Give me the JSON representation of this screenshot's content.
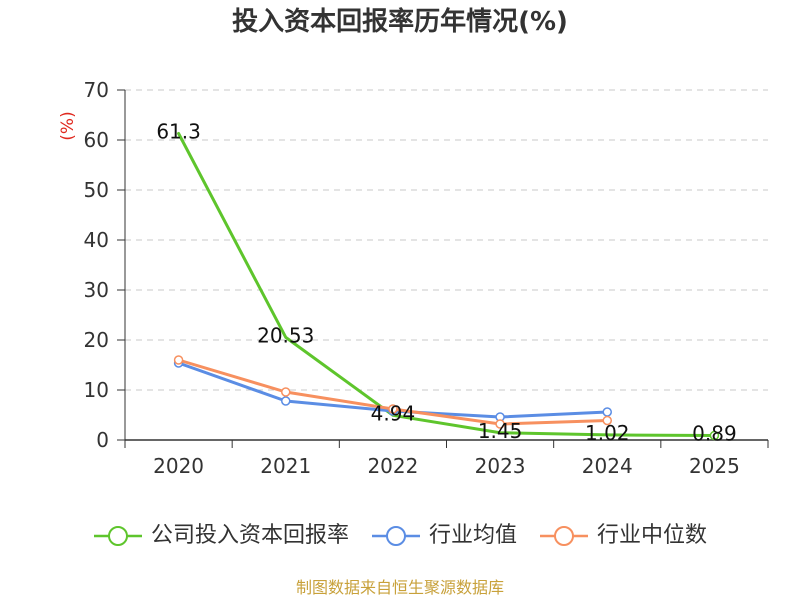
{
  "chart_data": {
    "type": "line",
    "title": "投入资本回报率历年情况(%)",
    "xlabel": "",
    "ylabel": "(%)",
    "categories": [
      "2020",
      "2021",
      "2022",
      "2023",
      "2024",
      "2025"
    ],
    "ylim": [
      0,
      70
    ],
    "yticks": [
      0,
      10,
      20,
      30,
      40,
      50,
      60,
      70
    ],
    "grid": true,
    "legend": "bottom",
    "series": [
      {
        "name": "公司投入资本回报率",
        "color": "#5ec52c",
        "values": [
          61.3,
          20.53,
          4.94,
          1.45,
          1.02,
          0.89
        ],
        "show_labels": true
      },
      {
        "name": "行业均值",
        "color": "#5b8de4",
        "values": [
          15.4,
          7.8,
          5.8,
          4.6,
          5.6,
          null
        ],
        "show_labels": false
      },
      {
        "name": "行业中位数",
        "color": "#f7905f",
        "values": [
          16.0,
          9.6,
          6.2,
          3.2,
          3.9,
          null
        ],
        "show_labels": false
      }
    ]
  },
  "footer": "制图数据来自恒生聚源数据库"
}
